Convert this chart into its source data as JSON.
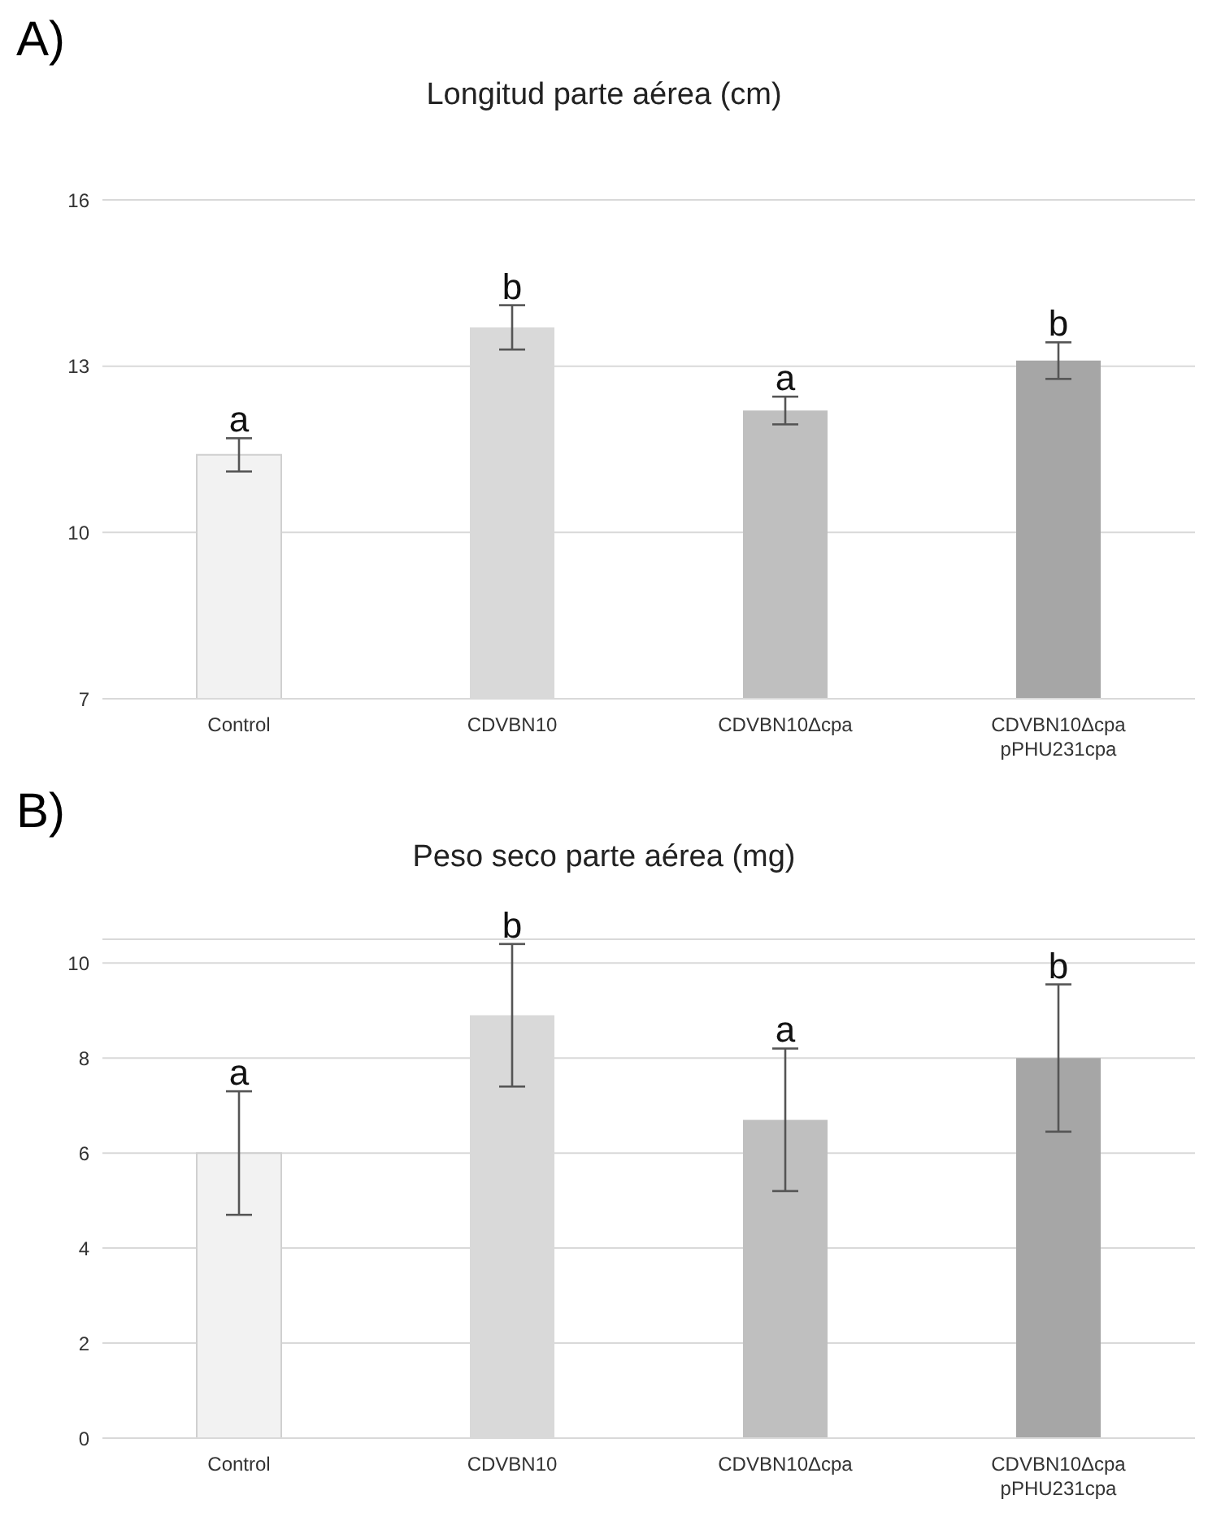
{
  "chart_data": [
    {
      "type": "bar",
      "title": "Longitud parte aérea (cm)",
      "categories": [
        "Control",
        "CDVBN10",
        "CDVBN10Δcpa",
        "CDVBN10Δcpa pPHU231cpa"
      ],
      "values": [
        11.4,
        13.7,
        12.2,
        13.1
      ],
      "errors": [
        0.3,
        0.4,
        0.25,
        0.33
      ],
      "colors": [
        "#f2f2f2",
        "#d9d9d9",
        "#bfbfbf",
        "#a6a6a6"
      ],
      "ylim": [
        7,
        16
      ],
      "yticks": [
        7,
        10,
        13,
        16
      ],
      "grid": "y",
      "legend": false,
      "annotations": [
        "A)",
        {
          "text": "a",
          "x": "Control",
          "y": 11.7
        },
        {
          "text": "b",
          "x": "CDVBN10",
          "y": 14.1
        },
        {
          "text": "a",
          "x": "CDVBN10Δcpa",
          "y": 12.45
        },
        {
          "text": "b",
          "x": "CDVBN10Δcpa pPHU231cpa",
          "y": 13.43
        }
      ]
    },
    {
      "type": "bar",
      "title": "Peso seco parte aérea (mg)",
      "categories": [
        "Control",
        "CDVBN10",
        "CDVBN10Δcpa",
        "CDVBN10Δcpa pPHU231cpa"
      ],
      "values": [
        6.0,
        8.9,
        6.7,
        8.0
      ],
      "errors": [
        1.3,
        1.5,
        1.5,
        1.55
      ],
      "colors": [
        "#f2f2f2",
        "#d9d9d9",
        "#bfbfbf",
        "#a6a6a6"
      ],
      "ylim": [
        0,
        10.5
      ],
      "yticks": [
        0,
        2,
        4,
        6,
        8,
        10
      ],
      "grid": "y",
      "legend": false,
      "annotations": [
        "B)",
        {
          "text": "a",
          "x": "Control",
          "y": 7.3
        },
        {
          "text": "b",
          "x": "CDVBN10",
          "y": 10.4
        },
        {
          "text": "a",
          "x": "CDVBN10Δcpa",
          "y": 8.2
        },
        {
          "text": "b",
          "x": "CDVBN10Δcpa pPHU231cpa",
          "y": 9.55
        }
      ]
    }
  ]
}
